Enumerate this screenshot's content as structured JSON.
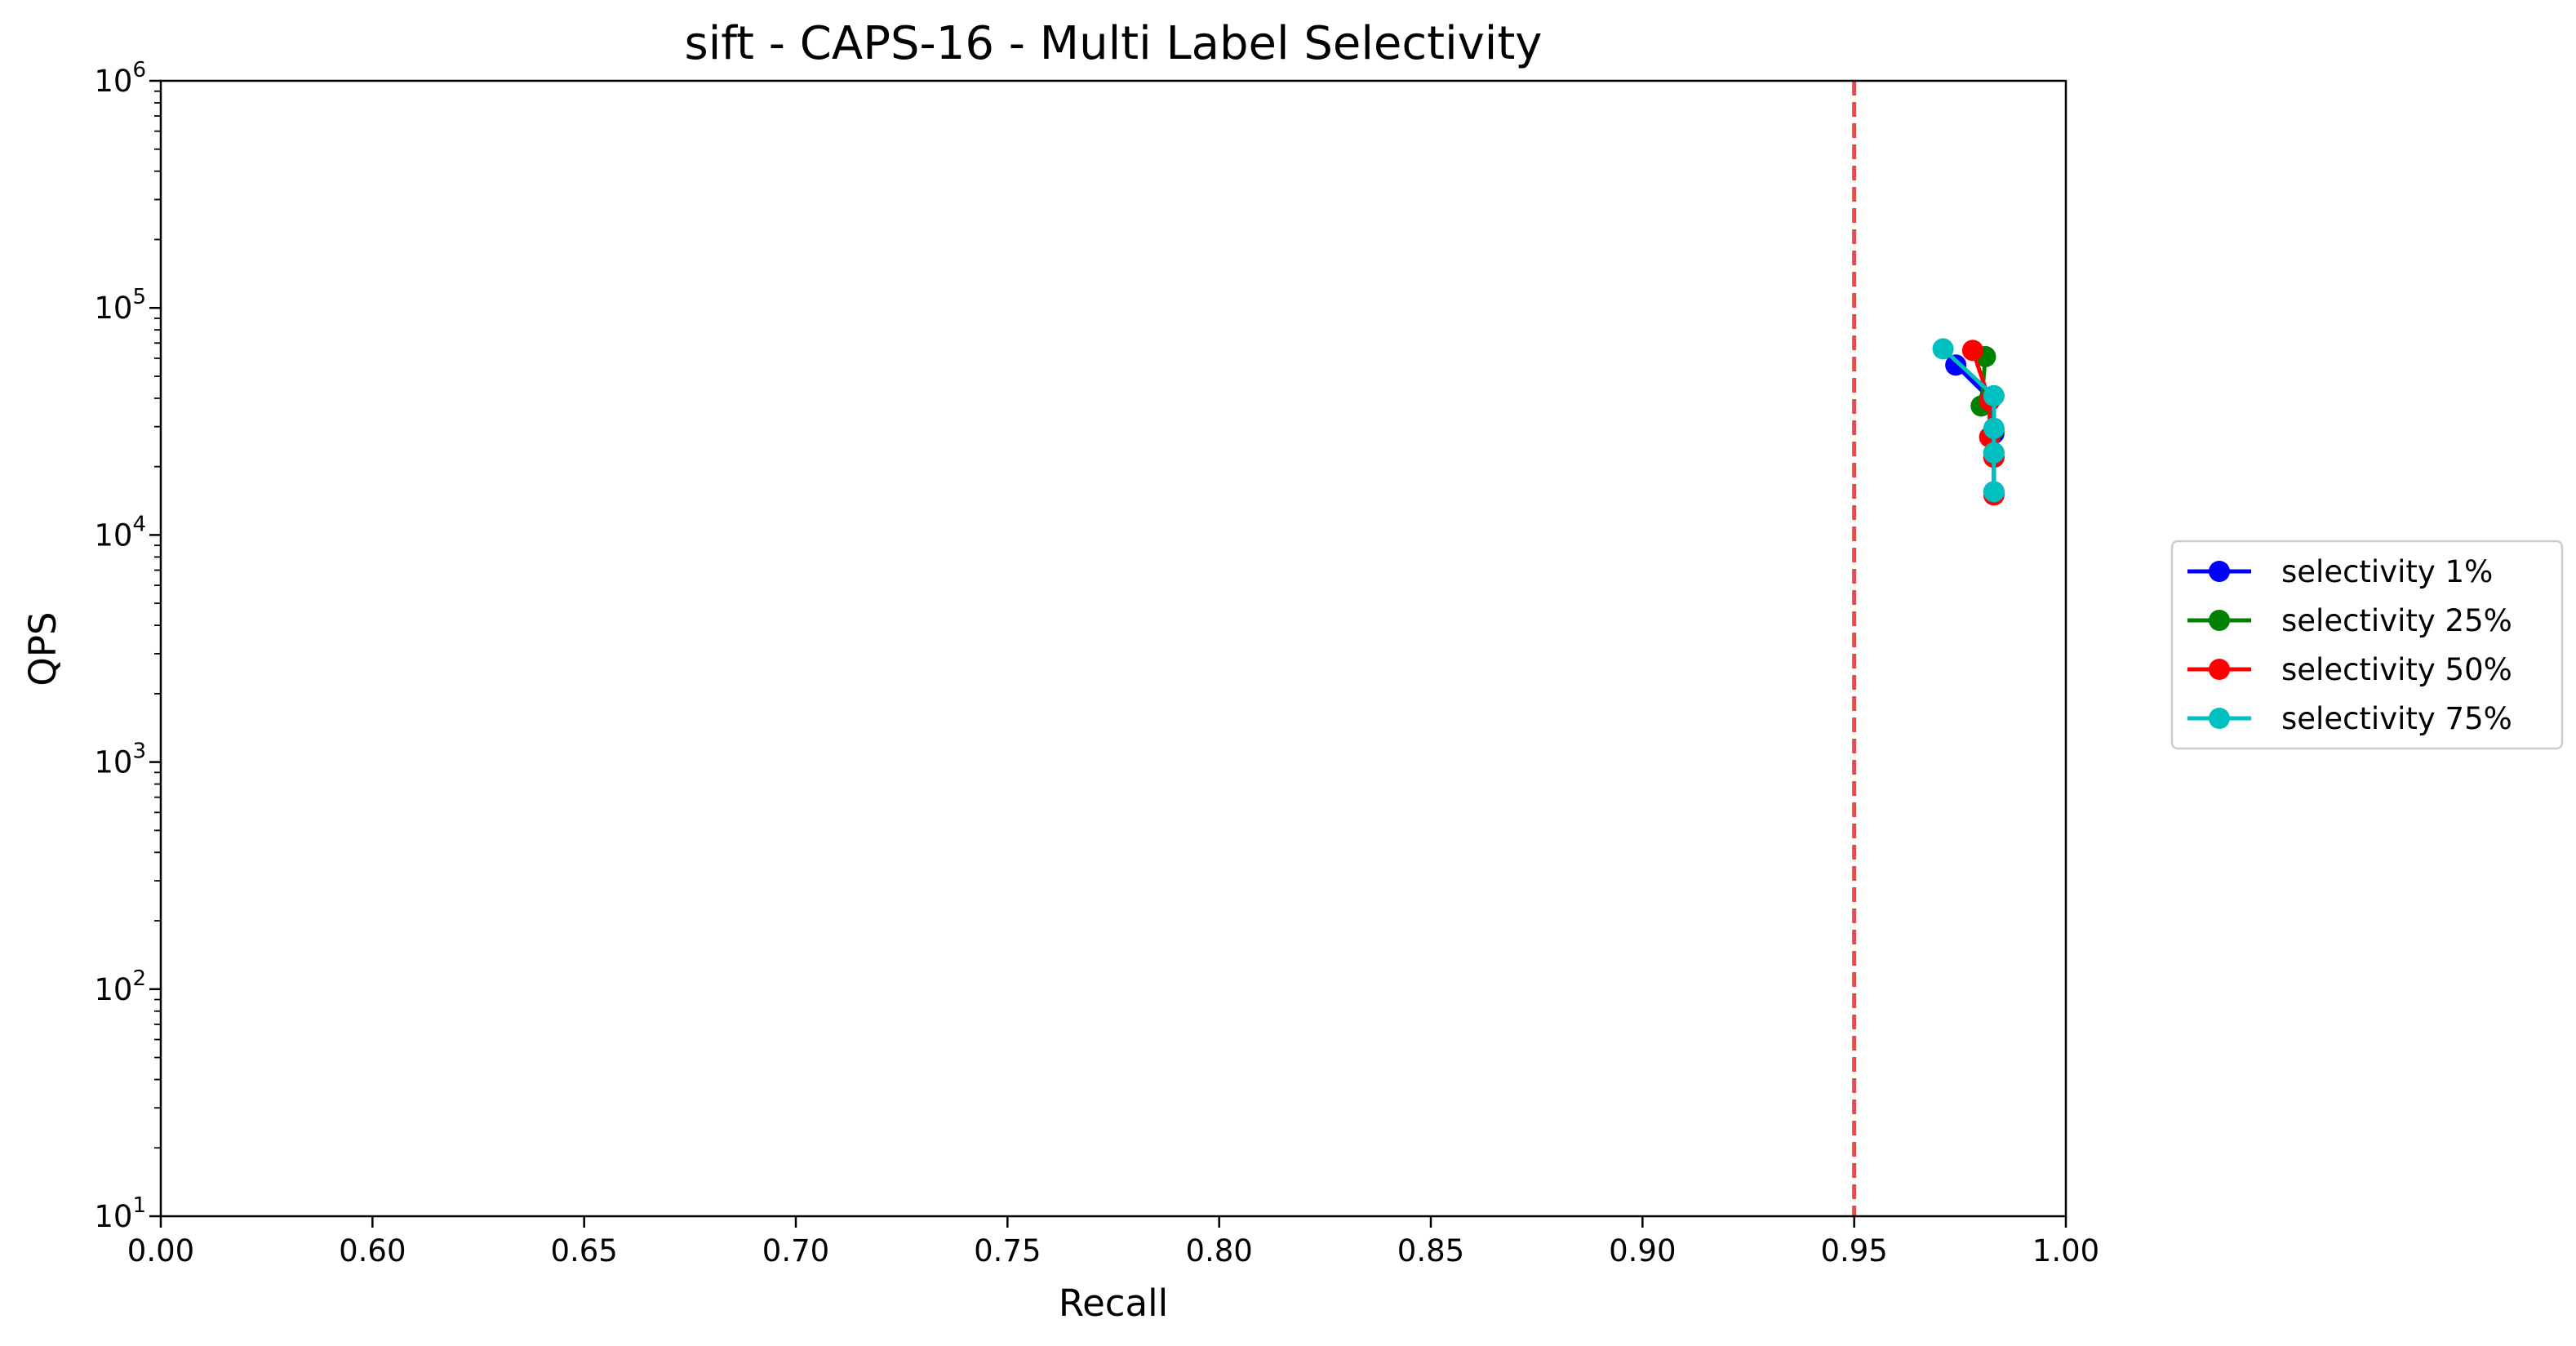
{
  "chart_data": {
    "type": "line",
    "title": "sift - CAPS-16 - Multi Label Selectivity",
    "xlabel": "Recall",
    "ylabel": "QPS",
    "x_ticks": [
      "0.00",
      "0.60",
      "0.65",
      "0.70",
      "0.75",
      "0.80",
      "0.85",
      "0.90",
      "0.95",
      "1.00"
    ],
    "y_scale": "log",
    "y_ticks": [
      {
        "base": "10",
        "exp": "1"
      },
      {
        "base": "10",
        "exp": "2"
      },
      {
        "base": "10",
        "exp": "3"
      },
      {
        "base": "10",
        "exp": "4"
      },
      {
        "base": "10",
        "exp": "5"
      },
      {
        "base": "10",
        "exp": "6"
      }
    ],
    "ylim": [
      10,
      1000000
    ],
    "reference_line": {
      "x": 0.95,
      "color": "#f04848",
      "style": "dashed"
    },
    "legend_position": "outside-right",
    "series": [
      {
        "name": "selectivity 1%",
        "color": "#0000ff",
        "points": [
          [
            0.974,
            56000
          ],
          [
            0.982,
            40000
          ],
          [
            0.983,
            28000
          ],
          [
            0.983,
            22000
          ],
          [
            0.983,
            15500
          ]
        ]
      },
      {
        "name": "selectivity 25%",
        "color": "#008000",
        "points": [
          [
            0.981,
            61000
          ],
          [
            0.98,
            37000
          ],
          [
            0.983,
            41000
          ],
          [
            0.983,
            29000
          ],
          [
            0.983,
            23000
          ]
        ]
      },
      {
        "name": "selectivity 50%",
        "color": "#ff0000",
        "points": [
          [
            0.978,
            65000
          ],
          [
            0.982,
            39000
          ],
          [
            0.982,
            27000
          ],
          [
            0.983,
            22000
          ],
          [
            0.983,
            15000
          ]
        ]
      },
      {
        "name": "selectivity 75%",
        "color": "#00bfbf",
        "points": [
          [
            0.971,
            66000
          ],
          [
            0.983,
            41000
          ],
          [
            0.983,
            29500
          ],
          [
            0.983,
            23000
          ],
          [
            0.983,
            15500
          ]
        ]
      }
    ]
  }
}
